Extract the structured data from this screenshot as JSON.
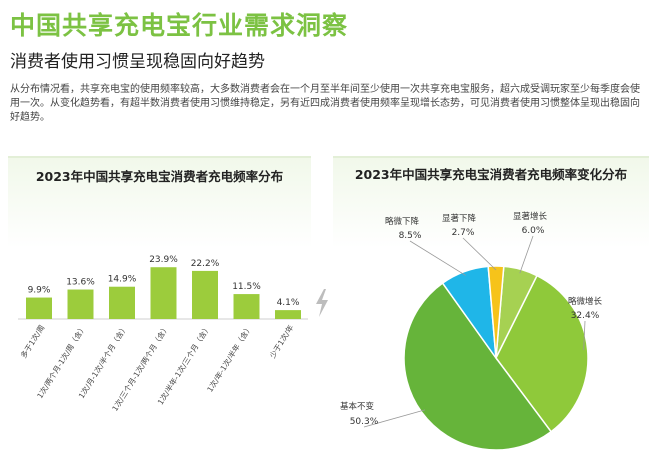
{
  "header": {
    "title": "中国共享充电宝行业需求洞察",
    "subtitle": "消费者使用习惯呈现稳固向好趋势",
    "paragraph": "从分布情况看，共享充电宝的使用频率较高，大多数消费者会在一个月至半年间至少使用一次共享充电宝服务，超六成受调玩家至少每季度会使用一次。从变化趋势看，有超半数消费者使用习惯维持稳定，另有近四成消费者使用频率呈现增长态势，可见消费者使用习惯整体呈现出稳固向好趋势。"
  },
  "colors": {
    "title_green": "#7cc243",
    "bar_fill": "#9ccc3c",
    "pie_basic": "#66b43a",
    "pie_slight_up": "#8fc93a",
    "pie_sig_up": "#a6d152",
    "pie_sig_down": "#f6c31a",
    "pie_slight_down": "#1fb6e8"
  },
  "chart_data": [
    {
      "type": "bar",
      "title": "2023年中国共享充电宝消费者充电频率分布",
      "categories": [
        "多于1次/周",
        "1次/两个月-1次/周（含）",
        "1次/月-1次/半个月（含）",
        "1次/三个月-1次/两个月（含）",
        "1次/半年-1次/三个月（含）",
        "1次/年-1次/半年（含）",
        "少于1次/年"
      ],
      "values": [
        9.9,
        13.6,
        14.9,
        23.9,
        22.2,
        11.5,
        4.1
      ],
      "value_labels": [
        "9.9%",
        "13.6%",
        "14.9%",
        "23.9%",
        "22.2%",
        "11.5%",
        "4.1%"
      ],
      "ylim": [
        0,
        30
      ]
    },
    {
      "type": "pie",
      "title": "2023年中国共享充电宝消费者充电频率变化分布",
      "slices": [
        {
          "label": "显著增长",
          "value": 6.0,
          "value_label": "6.0%"
        },
        {
          "label": "略微增长",
          "value": 32.4,
          "value_label": "32.4%"
        },
        {
          "label": "基本不变",
          "value": 50.3,
          "value_label": "50.3%"
        },
        {
          "label": "略微下降",
          "value": 8.5,
          "value_label": "8.5%"
        },
        {
          "label": "显著下降",
          "value": 2.7,
          "value_label": "2.7%"
        }
      ]
    }
  ]
}
